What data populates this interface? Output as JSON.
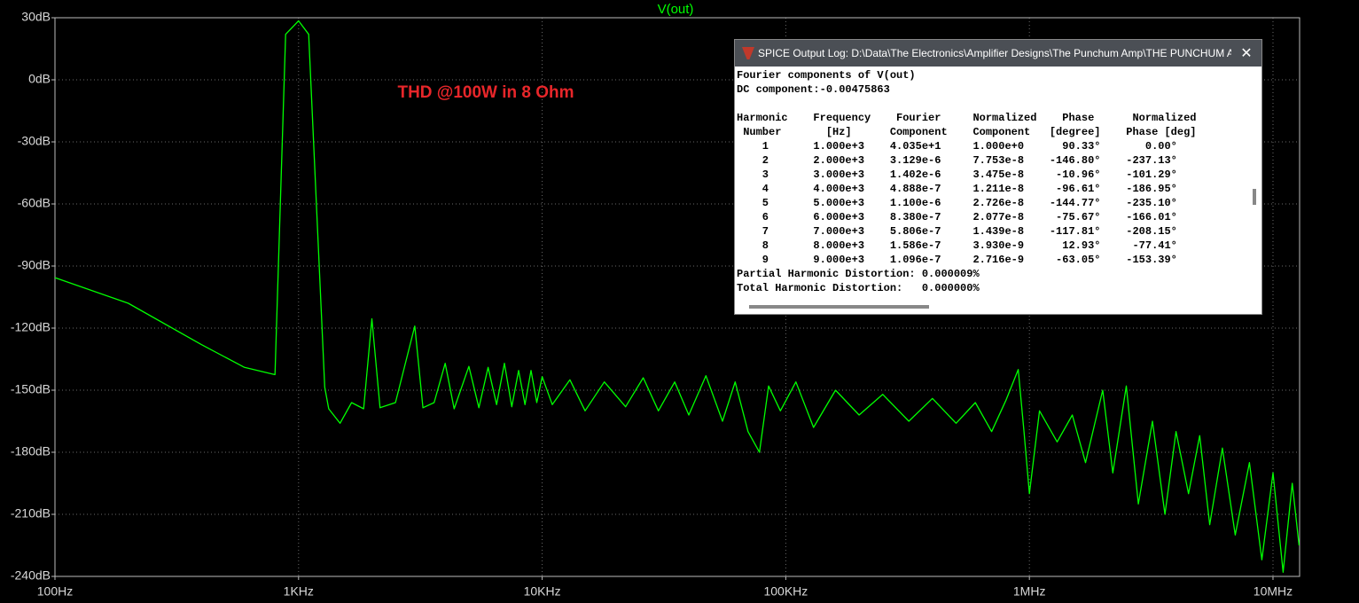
{
  "chart_data": {
    "type": "line",
    "title": "V(out)",
    "annotation": "THD @100W in 8 Ohm",
    "xlog": true,
    "grid": true,
    "xlim": [
      100,
      12860000
    ],
    "ylim": [
      -240,
      30
    ],
    "xticks": [
      {
        "value": 100,
        "label": "100Hz"
      },
      {
        "value": 1000,
        "label": "1KHz"
      },
      {
        "value": 10000,
        "label": "10KHz"
      },
      {
        "value": 100000,
        "label": "100KHz"
      },
      {
        "value": 1000000,
        "label": "1MHz"
      },
      {
        "value": 10000000,
        "label": "10MHz"
      }
    ],
    "yticks": [
      {
        "value": 30,
        "label": "30dB"
      },
      {
        "value": 0,
        "label": "0dB"
      },
      {
        "value": -30,
        "label": "-30dB"
      },
      {
        "value": -60,
        "label": "-60dB"
      },
      {
        "value": -90,
        "label": "-90dB"
      },
      {
        "value": -120,
        "label": "-120dB"
      },
      {
        "value": -150,
        "label": "-150dB"
      },
      {
        "value": -180,
        "label": "-180dB"
      },
      {
        "value": -210,
        "label": "-210dB"
      },
      {
        "value": -240,
        "label": "-240dB"
      }
    ],
    "x": [
      100,
      200,
      400,
      600,
      800,
      885,
      1000,
      1100,
      1280,
      1330,
      1480,
      1650,
      1850,
      2000,
      2160,
      2500,
      3000,
      3240,
      3600,
      4000,
      4350,
      5000,
      5500,
      6000,
      6500,
      7000,
      7500,
      8000,
      8500,
      9000,
      9500,
      10000,
      11000,
      13000,
      15000,
      18000,
      22000,
      26000,
      30000,
      35000,
      40000,
      47000,
      55000,
      62000,
      70000,
      78000,
      85000,
      95000,
      110000,
      130000,
      160000,
      200000,
      250000,
      320000,
      400000,
      500000,
      600000,
      700000,
      800000,
      900000,
      950000,
      1000000,
      1100000,
      1300000,
      1500000,
      1700000,
      2000000,
      2200000,
      2500000,
      2800000,
      3200000,
      3600000,
      4000000,
      4500000,
      5000000,
      5500000,
      6200000,
      7000000,
      8000000,
      9000000,
      10000000,
      11000000,
      12000000,
      12800000
    ],
    "series": [
      {
        "name": "V(out)",
        "color": "#00ff00",
        "values": [
          -95.6,
          -108,
          -128,
          -139,
          -142.5,
          22,
          28.5,
          22,
          -148.5,
          -159,
          -166,
          -156,
          -159,
          -115.5,
          -158.5,
          -156,
          -119,
          -158.5,
          -156,
          -137,
          -159,
          -138.5,
          -158.5,
          -139,
          -157,
          -137,
          -158,
          -140.5,
          -157,
          -140.5,
          -156,
          -143.5,
          -157,
          -145,
          -160,
          -146,
          -158,
          -144,
          -160,
          -146,
          -162,
          -143,
          -165,
          -146,
          -170,
          -180,
          -148,
          -160,
          -146,
          -168,
          -150,
          -162,
          -152,
          -165,
          -154,
          -166,
          -156,
          -170,
          -155,
          -140,
          -170,
          -200,
          -160,
          -175,
          -162,
          -185,
          -150,
          -190,
          -148,
          -205,
          -165,
          -210,
          -170,
          -200,
          -172,
          -215,
          -178,
          -220,
          -185,
          -232,
          -190,
          -238,
          -195,
          -225
        ]
      }
    ]
  },
  "log_window": {
    "title": "SPICE Output Log: D:\\Data\\The Electronics\\Amplifier Designs\\The Punchum Amp\\THE PUNCHUM A...",
    "header_lines": [
      "Fourier components of V(out)",
      "DC component:-0.00475863"
    ],
    "table_lines": [
      "Harmonic    Frequency    Fourier     Normalized    Phase      Normalized",
      " Number       [Hz]      Component    Component   [degree]    Phase [deg]",
      "    1       1.000e+3    4.035e+1     1.000e+0      90.33°       0.00°",
      "    2       2.000e+3    3.129e-6     7.753e-8    -146.80°    -237.13°",
      "    3       3.000e+3    1.402e-6     3.475e-8     -10.96°    -101.29°",
      "    4       4.000e+3    4.888e-7     1.211e-8     -96.61°    -186.95°",
      "    5       5.000e+3    1.100e-6     2.726e-8    -144.77°    -235.10°",
      "    6       6.000e+3    8.380e-7     2.077e-8     -75.67°    -166.01°",
      "    7       7.000e+3    5.806e-7     1.439e-8    -117.81°    -208.15°",
      "    8       8.000e+3    1.586e-7     3.930e-9      12.93°     -77.41°",
      "    9       9.000e+3    1.096e-7     2.716e-9     -63.05°    -153.39°"
    ],
    "footer_lines": [
      "Partial Harmonic Distortion: 0.000009%",
      "Total Harmonic Distortion:   0.000000%"
    ]
  }
}
